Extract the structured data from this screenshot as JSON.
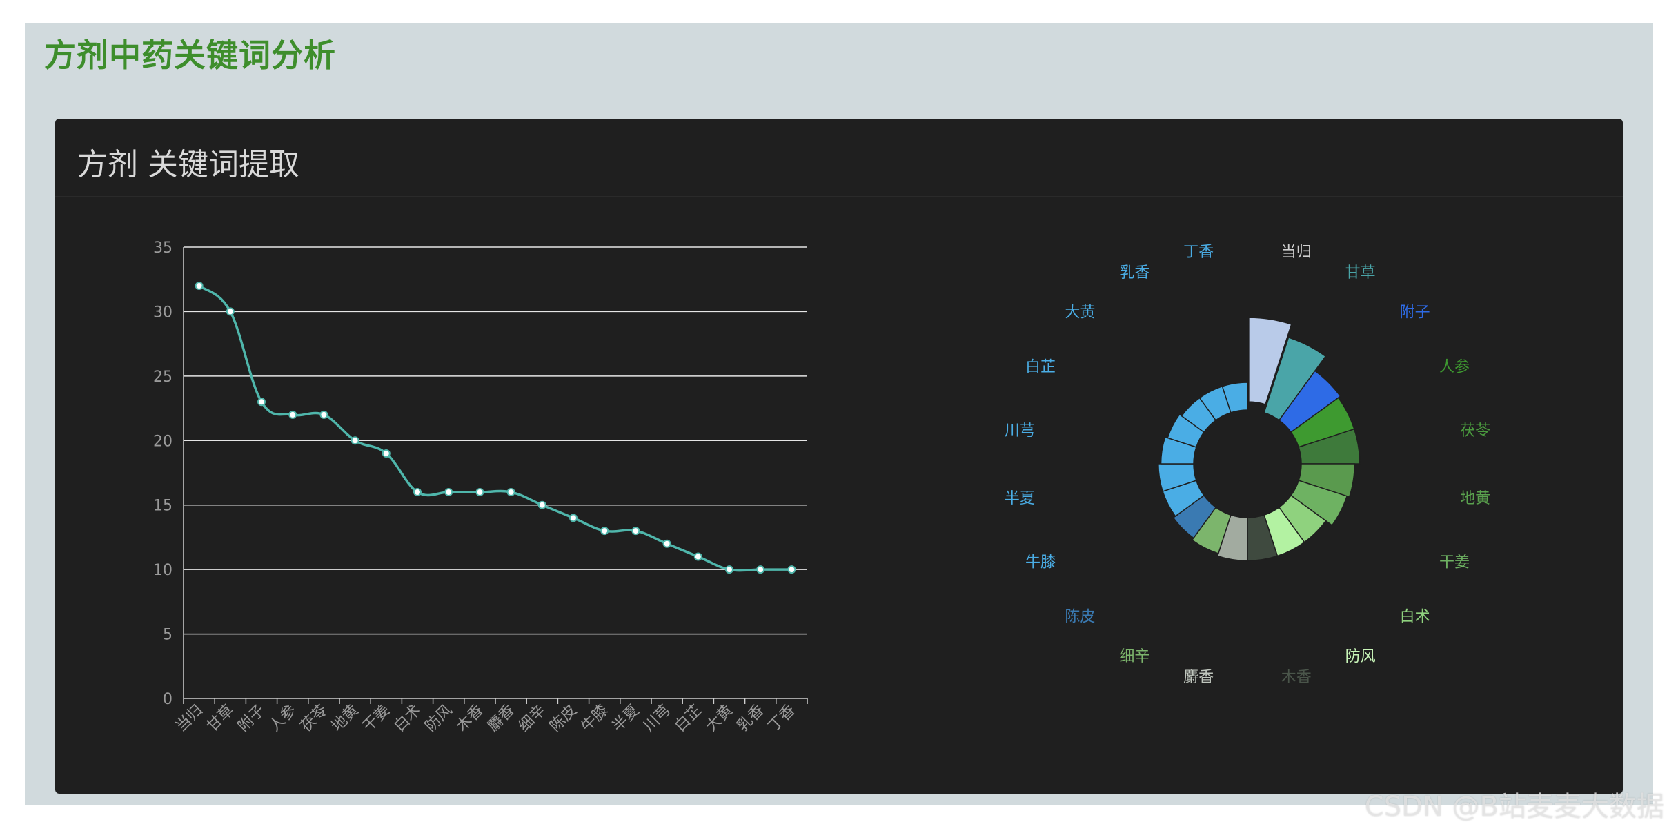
{
  "page": {
    "title": "方剂中药关键词分析",
    "panel_title": "方剂 关键词提取",
    "watermark": "CSDN @B站麦麦大数据"
  },
  "colors": {
    "frame_bg": "#d1dadd",
    "panel_bg": "#1f1f1f",
    "title_green": "#3e8e2c",
    "line": "#4fb6ab",
    "point_fill": "#ffffff"
  },
  "chart_data": [
    {
      "type": "line",
      "smooth": true,
      "categories": [
        "当归",
        "甘草",
        "附子",
        "人参",
        "茯苓",
        "地黄",
        "干姜",
        "白术",
        "防风",
        "木香",
        "麝香",
        "细辛",
        "陈皮",
        "牛膝",
        "半夏",
        "川芎",
        "白芷",
        "大黄",
        "乳香",
        "丁香"
      ],
      "series": [
        {
          "values": [
            32,
            30,
            23,
            22,
            22,
            20,
            19,
            16,
            16,
            16,
            16,
            15,
            14,
            13,
            13,
            12,
            11,
            10,
            10,
            10
          ]
        }
      ],
      "ylim": [
        0,
        35
      ],
      "yticks": [
        0,
        5,
        10,
        15,
        20,
        25,
        30,
        35
      ],
      "grid": true,
      "xlabel": "",
      "ylabel": ""
    },
    {
      "type": "pie",
      "variant": "rose-donut",
      "slices": [
        {
          "label": "当归",
          "value": 32,
          "color": "#b9cbe9",
          "label_color": "#cfcfcf",
          "offset": true
        },
        {
          "label": "甘草",
          "value": 30,
          "color": "#4aa5a8",
          "label_color": "#4aa5a8"
        },
        {
          "label": "附子",
          "value": 23,
          "color": "#2e6be6",
          "label_color": "#2e6be6"
        },
        {
          "label": "人参",
          "value": 22,
          "color": "#3e9a30",
          "label_color": "#3e9a30"
        },
        {
          "label": "茯苓",
          "value": 22,
          "color": "#3e7a3b",
          "label_color": "#4a9a3e"
        },
        {
          "label": "地黄",
          "value": 20,
          "color": "#5a9a4e",
          "label_color": "#5aa24e"
        },
        {
          "label": "干姜",
          "value": 19,
          "color": "#6eb262",
          "label_color": "#6eb262"
        },
        {
          "label": "白术",
          "value": 16,
          "color": "#8fd27e",
          "label_color": "#8fd27e"
        },
        {
          "label": "防风",
          "value": 16,
          "color": "#b3f2a2",
          "label_color": "#c8f5b8"
        },
        {
          "label": "木香",
          "value": 16,
          "color": "#3f4a3f",
          "label_color": "#4a554a"
        },
        {
          "label": "麝香",
          "value": 16,
          "color": "#a2aba0",
          "label_color": "#bfc6bd"
        },
        {
          "label": "细辛",
          "value": 15,
          "color": "#7cb56c",
          "label_color": "#7cb56c"
        },
        {
          "label": "陈皮",
          "value": 14,
          "color": "#3a7ab2",
          "label_color": "#3a7ab2"
        },
        {
          "label": "牛膝",
          "value": 13,
          "color": "#4aade5",
          "label_color": "#4aade5"
        },
        {
          "label": "半夏",
          "value": 13,
          "color": "#4aade5",
          "label_color": "#4aade5"
        },
        {
          "label": "川芎",
          "value": 12,
          "color": "#4aade5",
          "label_color": "#4aade5"
        },
        {
          "label": "白芷",
          "value": 11,
          "color": "#4aade5",
          "label_color": "#4aade5"
        },
        {
          "label": "大黄",
          "value": 10,
          "color": "#4aade5",
          "label_color": "#4aade5"
        },
        {
          "label": "乳香",
          "value": 10,
          "color": "#4aade5",
          "label_color": "#4aade5"
        },
        {
          "label": "丁香",
          "value": 10,
          "color": "#4aade5",
          "label_color": "#4aade5"
        }
      ]
    }
  ]
}
